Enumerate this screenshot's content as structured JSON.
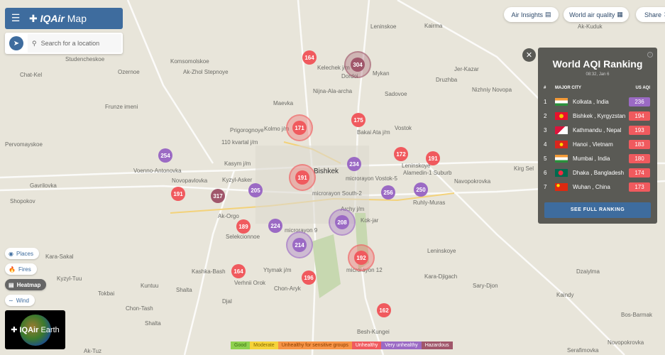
{
  "header": {
    "menu_icon": "hamburger-icon",
    "logo": "IQAir",
    "logo_suffix": "Map"
  },
  "search": {
    "placeholder": "Search for a location"
  },
  "top_buttons": [
    {
      "label": "Air Insights",
      "icon": "list-icon"
    },
    {
      "label": "World air quality",
      "icon": "globe-list-icon"
    },
    {
      "label": "Share",
      "icon": "share-icon"
    }
  ],
  "ranking": {
    "title": "World AQI Ranking",
    "time": "08:32, Jan 6",
    "col_rank": "#",
    "col_city": "MAJOR CITY",
    "col_aqi": "US AQI",
    "button": "SEE FULL RANKING",
    "rows": [
      {
        "rank": "1",
        "city": "Kolkata , India",
        "aqi": "236",
        "color": "#9b6ac4",
        "flag": "india"
      },
      {
        "rank": "2",
        "city": "Bishkek , Kyrgyzstan",
        "aqi": "194",
        "color": "#f05a5e",
        "flag": "kyrgyzstan"
      },
      {
        "rank": "3",
        "city": "Kathmandu , Nepal",
        "aqi": "193",
        "color": "#f05a5e",
        "flag": "nepal"
      },
      {
        "rank": "4",
        "city": "Hanoi , Vietnam",
        "aqi": "183",
        "color": "#f05a5e",
        "flag": "vietnam"
      },
      {
        "rank": "5",
        "city": "Mumbai , India",
        "aqi": "180",
        "color": "#f05a5e",
        "flag": "india"
      },
      {
        "rank": "6",
        "city": "Dhaka , Bangladesh",
        "aqi": "174",
        "color": "#f05a5e",
        "flag": "bangladesh"
      },
      {
        "rank": "7",
        "city": "Wuhan , China",
        "aqi": "173",
        "color": "#f05a5e",
        "flag": "china"
      }
    ]
  },
  "layers": [
    {
      "label": "Places",
      "icon": "pin-icon"
    },
    {
      "label": "Fires",
      "icon": "flame-icon"
    },
    {
      "label": "Heatmap",
      "icon": "heatmap-icon",
      "active": true
    },
    {
      "label": "Wind",
      "icon": "wind-icon"
    }
  ],
  "earth": {
    "logo": "IQAir",
    "suffix": "Earth"
  },
  "legend": [
    {
      "label": "Good",
      "color": "#8fd14f",
      "text": "#3a6d12"
    },
    {
      "label": "Moderate",
      "color": "#f5d33a",
      "text": "#8a6b00"
    },
    {
      "label": "Unhealthy for sensitive groups",
      "color": "#f79447",
      "text": "#8a3f00"
    },
    {
      "label": "Unhealthy",
      "color": "#f05a5e",
      "text": "#fff"
    },
    {
      "label": "Very unhealthy",
      "color": "#9b6ac4",
      "text": "#fff"
    },
    {
      "label": "Hazardous",
      "color": "#a0566a",
      "text": "#fff"
    }
  ],
  "markers": [
    {
      "aqi": "164",
      "level": "unhealthy"
    },
    {
      "aqi": "304",
      "level": "hazardous",
      "cluster": true
    },
    {
      "aqi": "171",
      "level": "unhealthy",
      "cluster": true
    },
    {
      "aqi": "175",
      "level": "unhealthy"
    },
    {
      "aqi": "254",
      "level": "very-unhealthy"
    },
    {
      "aqi": "172",
      "level": "unhealthy"
    },
    {
      "aqi": "191",
      "level": "unhealthy"
    },
    {
      "aqi": "234",
      "level": "very-unhealthy"
    },
    {
      "aqi": "191",
      "level": "unhealthy",
      "cluster": true
    },
    {
      "aqi": "191",
      "level": "unhealthy"
    },
    {
      "aqi": "317",
      "level": "hazardous"
    },
    {
      "aqi": "205",
      "level": "very-unhealthy"
    },
    {
      "aqi": "256",
      "level": "very-unhealthy"
    },
    {
      "aqi": "250",
      "level": "very-unhealthy"
    },
    {
      "aqi": "189",
      "level": "unhealthy"
    },
    {
      "aqi": "224",
      "level": "very-unhealthy"
    },
    {
      "aqi": "208",
      "level": "very-unhealthy",
      "cluster": true
    },
    {
      "aqi": "214",
      "level": "very-unhealthy",
      "cluster": true
    },
    {
      "aqi": "192",
      "level": "unhealthy",
      "cluster": true
    },
    {
      "aqi": "164",
      "level": "unhealthy"
    },
    {
      "aqi": "196",
      "level": "unhealthy"
    },
    {
      "aqi": "162",
      "level": "unhealthy"
    }
  ],
  "places": [
    "Studencheskoe",
    "Komsomolskoe",
    "Ozernoe",
    "Ak-Zhol Stepnoye",
    "Chat-Kel",
    "Kelechek j/m",
    "Dordoi",
    "Mykan",
    "Leninskoe",
    "Kairma",
    "Ak-Kuduk",
    "Jer-Kazar",
    "Druzhba",
    "Nizhniy Novopa",
    "Maevka",
    "Nijna-Ala-archa",
    "Sadovoe",
    "Frunze imeni",
    "Prigorognoye",
    "Kolmo j/m",
    "Bakai Ata j/m",
    "Vostok",
    "Pervomayskoe",
    "110 kvartal j/m",
    "Kasym j/m",
    "Voenno-Antonovka",
    "Novopavlovka",
    "Kyzyl-Asker",
    "Bishkek",
    "microrayon Vostok-5",
    "Leninskoye",
    "Alamedin-1 Suburb",
    "Navopokrovka",
    "Kirg Sel",
    "Gavrilovka",
    "Shopokov",
    "microrayon South-2",
    "Archy j/m",
    "Ruhly-Muras",
    "Ak-Orgo",
    "Selekcionnoe",
    "microrayon 9",
    "Kok-jar",
    "Leninskoye",
    "Kashka-Bash",
    "Ytymak j/m",
    "microrayon 12",
    "Kara-Sakal",
    "Kyzyl-Tuu",
    "Verhnii Orok",
    "Chon-Aryk",
    "Kara-Djigach",
    "Dzaiylma",
    "Kuntuu",
    "Tokbai",
    "Shalta",
    "Djal",
    "Sary-Djon",
    "Kaindy",
    "Chon-Tash",
    "Shalta",
    "Besh-Kungei",
    "Bos-Barmak",
    "Novopokrovka",
    "Serafimovka",
    "Ak-Tuz"
  ]
}
